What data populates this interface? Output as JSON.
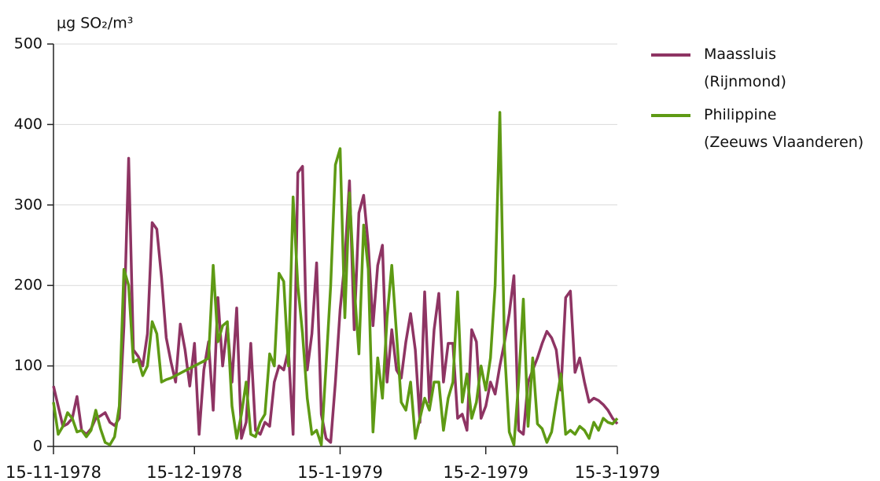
{
  "chart_data": {
    "type": "line",
    "y_label": "μg SO₂/m³",
    "x": [
      "15-11-1978",
      "16-11-1978",
      "17-11-1978",
      "18-11-1978",
      "19-11-1978",
      "20-11-1978",
      "21-11-1978",
      "22-11-1978",
      "23-11-1978",
      "24-11-1978",
      "25-11-1978",
      "26-11-1978",
      "27-11-1978",
      "28-11-1978",
      "29-11-1978",
      "30-11-1978",
      "1-12-1978",
      "2-12-1978",
      "3-12-1978",
      "4-12-1978",
      "5-12-1978",
      "6-12-1978",
      "7-12-1978",
      "8-12-1978",
      "9-12-1978",
      "10-12-1978",
      "11-12-1978",
      "12-12-1978",
      "13-12-1978",
      "14-12-1978",
      "15-12-1978",
      "16-12-1978",
      "17-12-1978",
      "18-12-1978",
      "19-12-1978",
      "20-12-1978",
      "21-12-1978",
      "22-12-1978",
      "23-12-1978",
      "24-12-1978",
      "25-12-1978",
      "26-12-1978",
      "27-12-1978",
      "28-12-1978",
      "29-12-1978",
      "30-12-1978",
      "31-12-1978",
      "1-1-1979",
      "2-1-1979",
      "3-1-1979",
      "4-1-1979",
      "5-1-1979",
      "6-1-1979",
      "7-1-1979",
      "8-1-1979",
      "9-1-1979",
      "10-1-1979",
      "11-1-1979",
      "12-1-1979",
      "13-1-1979",
      "14-1-1979",
      "15-1-1979",
      "16-1-1979",
      "17-1-1979",
      "18-1-1979",
      "19-1-1979",
      "20-1-1979",
      "21-1-1979",
      "22-1-1979",
      "23-1-1979",
      "24-1-1979",
      "25-1-1979",
      "26-1-1979",
      "27-1-1979",
      "28-1-1979",
      "29-1-1979",
      "30-1-1979",
      "31-1-1979",
      "1-2-1979",
      "2-2-1979",
      "3-2-1979",
      "4-2-1979",
      "5-2-1979",
      "6-2-1979",
      "7-2-1979",
      "8-2-1979",
      "9-2-1979",
      "10-2-1979",
      "11-2-1979",
      "12-2-1979",
      "13-2-1979",
      "14-2-1979",
      "15-2-1979",
      "16-2-1979",
      "17-2-1979",
      "18-2-1979",
      "19-2-1979",
      "20-2-1979",
      "21-2-1979",
      "22-2-1979",
      "23-2-1979",
      "24-2-1979",
      "25-2-1979",
      "26-2-1979",
      "27-2-1979",
      "28-2-1979",
      "1-3-1979",
      "2-3-1979",
      "3-3-1979",
      "4-3-1979",
      "5-3-1979",
      "6-3-1979",
      "7-3-1979",
      "8-3-1979",
      "9-3-1979",
      "10-3-1979",
      "11-3-1979",
      "12-3-1979",
      "13-3-1979",
      "14-3-1979",
      "15-3-1979"
    ],
    "series": [
      {
        "name": "Maassluis\n(Rijnmond)",
        "color": "#8e3463",
        "values": [
          75,
          50,
          25,
          28,
          35,
          62,
          20,
          15,
          22,
          35,
          38,
          42,
          30,
          26,
          35,
          150,
          358,
          120,
          112,
          100,
          140,
          278,
          270,
          210,
          135,
          105,
          80,
          152,
          120,
          75,
          128,
          15,
          95,
          130,
          45,
          185,
          100,
          150,
          80,
          172,
          10,
          30,
          128,
          20,
          15,
          30,
          25,
          80,
          100,
          95,
          120,
          15,
          340,
          348,
          95,
          140,
          228,
          40,
          10,
          5,
          80,
          170,
          230,
          330,
          145,
          290,
          312,
          250,
          150,
          225,
          250,
          80,
          145,
          95,
          85,
          130,
          165,
          120,
          30,
          192,
          55,
          145,
          190,
          80,
          128,
          128,
          35,
          40,
          20,
          145,
          130,
          35,
          50,
          80,
          65,
          100,
          130,
          165,
          212,
          20,
          15,
          80,
          95,
          110,
          128,
          143,
          135,
          120,
          70,
          185,
          193,
          92,
          110,
          80,
          55,
          60,
          57,
          52,
          45,
          35,
          28
        ]
      },
      {
        "name": "Philippine\n(Zeeuws Vlaanderen)",
        "color": "#5e9a14",
        "values": [
          55,
          15,
          25,
          42,
          35,
          18,
          20,
          12,
          20,
          45,
          22,
          5,
          2,
          12,
          50,
          220,
          200,
          105,
          108,
          88,
          100,
          155,
          140,
          80,
          83,
          85,
          88,
          91,
          94,
          97,
          100,
          103,
          106,
          110,
          225,
          130,
          150,
          155,
          50,
          10,
          40,
          80,
          15,
          12,
          30,
          40,
          115,
          100,
          215,
          205,
          100,
          310,
          200,
          140,
          60,
          15,
          20,
          2,
          100,
          200,
          350,
          370,
          160,
          315,
          200,
          115,
          275,
          220,
          18,
          110,
          60,
          160,
          225,
          140,
          55,
          45,
          80,
          10,
          35,
          60,
          45,
          80,
          80,
          20,
          60,
          80,
          192,
          55,
          90,
          35,
          55,
          100,
          70,
          110,
          200,
          415,
          120,
          18,
          2,
          80,
          183,
          25,
          110,
          28,
          22,
          5,
          18,
          55,
          90,
          15,
          20,
          15,
          25,
          20,
          10,
          30,
          20,
          35,
          30,
          28,
          35
        ]
      }
    ],
    "xlim": [
      "15-11-1978",
      "15-3-1979"
    ],
    "xticks": [
      "15-11-1978",
      "15-12-1978",
      "15-1-1979",
      "15-2-1979",
      "15-3-1979"
    ],
    "ylim": [
      0,
      500
    ],
    "yticks": [
      0,
      100,
      200,
      300,
      400,
      500
    ],
    "grid": true
  }
}
